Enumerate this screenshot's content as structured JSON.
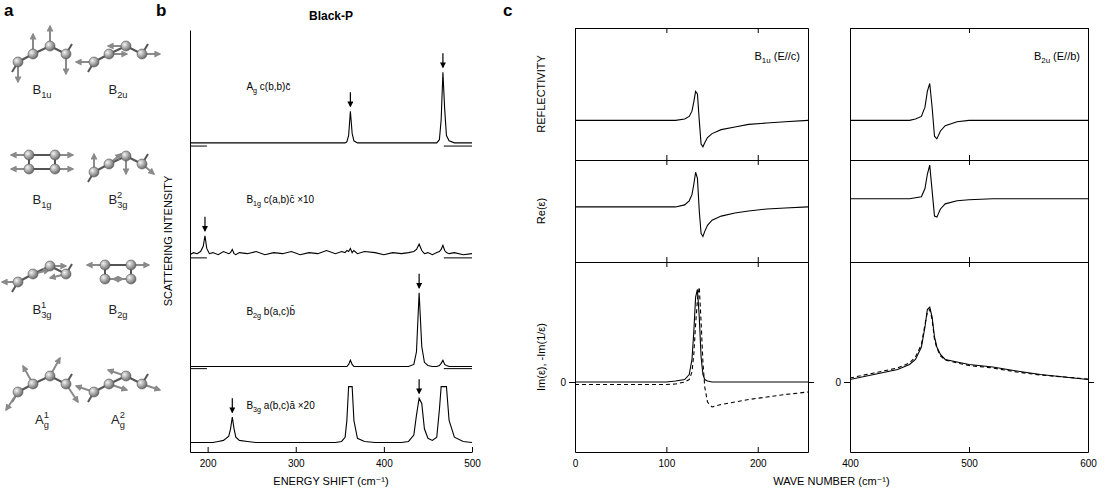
{
  "panel_letters": [
    "a",
    "b",
    "c"
  ],
  "diagram": {
    "modes": [
      "B1u",
      "B2u",
      "B1g",
      "B3g2",
      "B3g1",
      "B2g",
      "Ag1",
      "Ag2"
    ]
  },
  "chart_data": [
    {
      "type": "line",
      "title": "Black-P",
      "xlabel": "ENERGY SHIFT (cm⁻¹)",
      "ylabel": "SCATTERING INTENSITY",
      "x": [
        180,
        184,
        188,
        192,
        195,
        197,
        199,
        202,
        206,
        212,
        218,
        224,
        226,
        228,
        230,
        232,
        236,
        245,
        255,
        265,
        275,
        285,
        295,
        305,
        315,
        325,
        335,
        345,
        352,
        356,
        358,
        360,
        362,
        364,
        366,
        370,
        378,
        390,
        400,
        410,
        420,
        428,
        434,
        437,
        440,
        443,
        446,
        450,
        455,
        460,
        463,
        465,
        467,
        469,
        471,
        474,
        480,
        490,
        500
      ],
      "xlim": [
        180,
        500
      ],
      "xticks": [
        200,
        300,
        400,
        500
      ],
      "ylim": [
        0,
        4
      ],
      "tick_labels": "x",
      "series": [
        {
          "name": "Ag c(b,b)c̄",
          "color": "#000000",
          "baseline": 2.9,
          "arrows": [
            362,
            467
          ],
          "values": [
            2.93,
            2.93,
            2.93,
            2.93,
            2.93,
            2.93,
            2.93,
            2.93,
            2.93,
            2.93,
            2.93,
            2.93,
            2.93,
            2.93,
            2.93,
            2.93,
            2.93,
            2.93,
            2.93,
            2.93,
            2.93,
            2.93,
            2.93,
            2.93,
            2.93,
            2.93,
            2.93,
            2.93,
            2.93,
            2.93,
            2.94,
            3.0,
            3.23,
            3.02,
            2.95,
            2.93,
            2.93,
            2.93,
            2.93,
            2.93,
            2.93,
            2.93,
            2.93,
            2.93,
            2.93,
            2.93,
            2.93,
            2.93,
            2.93,
            2.93,
            2.96,
            3.15,
            3.6,
            3.25,
            3.0,
            2.95,
            2.93,
            2.93,
            2.93
          ]
        },
        {
          "name": "B1g c(a,b)c̄ ×10",
          "color": "#000000",
          "baseline": 1.84,
          "arrows": [
            197
          ],
          "values": [
            1.87,
            1.89,
            1.88,
            1.9,
            1.95,
            2.05,
            1.93,
            1.88,
            1.89,
            1.87,
            1.9,
            1.88,
            1.89,
            1.92,
            1.88,
            1.87,
            1.89,
            1.88,
            1.9,
            1.87,
            1.89,
            1.88,
            1.9,
            1.87,
            1.89,
            1.88,
            1.91,
            1.88,
            1.9,
            1.89,
            1.91,
            1.9,
            1.93,
            1.89,
            1.91,
            1.88,
            1.9,
            1.89,
            1.87,
            1.89,
            1.88,
            1.89,
            1.9,
            1.92,
            1.97,
            1.91,
            1.88,
            1.89,
            1.87,
            1.89,
            1.9,
            1.92,
            1.96,
            1.91,
            1.89,
            1.88,
            1.89,
            1.87,
            1.88
          ]
        },
        {
          "name": "B2g b(a,c)b̄",
          "color": "#000000",
          "baseline": 0.79,
          "arrows": [
            440
          ],
          "values": [
            0.81,
            0.81,
            0.81,
            0.81,
            0.81,
            0.81,
            0.81,
            0.81,
            0.81,
            0.81,
            0.81,
            0.81,
            0.81,
            0.81,
            0.81,
            0.81,
            0.81,
            0.81,
            0.81,
            0.81,
            0.81,
            0.81,
            0.81,
            0.81,
            0.81,
            0.81,
            0.81,
            0.81,
            0.81,
            0.81,
            0.81,
            0.83,
            0.87,
            0.83,
            0.81,
            0.81,
            0.81,
            0.81,
            0.81,
            0.81,
            0.81,
            0.81,
            0.83,
            0.95,
            1.51,
            1.0,
            0.85,
            0.82,
            0.81,
            0.81,
            0.82,
            0.84,
            0.87,
            0.83,
            0.82,
            0.81,
            0.81,
            0.81,
            0.81
          ]
        },
        {
          "name": "B3g a(b,c)ā ×20",
          "color": "#000000",
          "arrows": [
            228,
            440
          ],
          "values": [
            0.09,
            0.09,
            0.09,
            0.09,
            0.09,
            0.09,
            0.09,
            0.09,
            0.09,
            0.1,
            0.11,
            0.15,
            0.22,
            0.33,
            0.22,
            0.14,
            0.11,
            0.1,
            0.09,
            0.09,
            0.09,
            0.09,
            0.09,
            0.09,
            0.09,
            0.09,
            0.09,
            0.09,
            0.1,
            0.14,
            0.3,
            0.62,
            0.62,
            0.62,
            0.3,
            0.13,
            0.1,
            0.09,
            0.09,
            0.09,
            0.09,
            0.1,
            0.16,
            0.35,
            0.51,
            0.46,
            0.22,
            0.13,
            0.11,
            0.14,
            0.4,
            0.62,
            0.62,
            0.62,
            0.62,
            0.3,
            0.14,
            0.1,
            0.09
          ]
        }
      ]
    },
    {
      "type": "line",
      "title": "B1u (E//c)",
      "ylabel": "REFLECTIVITY",
      "x": [
        0,
        20,
        40,
        60,
        80,
        100,
        110,
        120,
        125,
        128,
        130,
        132,
        134,
        136,
        138,
        140,
        142,
        145,
        150,
        160,
        175,
        190,
        210,
        230,
        255
      ],
      "xlim": [
        0,
        255
      ],
      "xticks": [
        0,
        100,
        200
      ],
      "ylim": [
        0,
        1
      ],
      "tick_labels": false,
      "series": [
        {
          "color": "#000000",
          "line_style": "solid",
          "values": [
            0.3,
            0.3,
            0.3,
            0.3,
            0.3,
            0.3,
            0.3,
            0.31,
            0.33,
            0.37,
            0.44,
            0.52,
            0.5,
            0.3,
            0.12,
            0.1,
            0.13,
            0.17,
            0.2,
            0.23,
            0.25,
            0.27,
            0.28,
            0.29,
            0.3
          ]
        }
      ]
    },
    {
      "type": "line",
      "ylabel": "Re(ε)",
      "x": [
        0,
        20,
        40,
        60,
        80,
        100,
        110,
        120,
        125,
        128,
        130,
        132,
        134,
        136,
        138,
        140,
        142,
        145,
        150,
        160,
        175,
        190,
        210,
        230,
        255
      ],
      "xlim": [
        0,
        255
      ],
      "xticks": [
        0,
        100,
        200
      ],
      "ylim": [
        0,
        1
      ],
      "tick_labels": false,
      "series": [
        {
          "color": "#000000",
          "line_style": "solid",
          "values": [
            0.54,
            0.54,
            0.54,
            0.54,
            0.54,
            0.54,
            0.54,
            0.56,
            0.6,
            0.66,
            0.76,
            0.88,
            0.82,
            0.5,
            0.28,
            0.25,
            0.3,
            0.36,
            0.41,
            0.45,
            0.48,
            0.5,
            0.52,
            0.53,
            0.54
          ]
        }
      ]
    },
    {
      "type": "line",
      "xlabel": "WAVE NUMBER (cm⁻¹)",
      "ylabel": "Im(ε), -Im(1/ε)",
      "x": [
        0,
        20,
        40,
        60,
        80,
        100,
        110,
        120,
        125,
        128,
        130,
        132,
        134,
        136,
        138,
        140,
        142,
        145,
        150,
        160,
        175,
        190,
        210,
        230,
        255
      ],
      "xlim": [
        0,
        255
      ],
      "xticks": [
        0,
        100,
        200
      ],
      "ylim": [
        -1.4,
        2.4
      ],
      "yticks": [
        0
      ],
      "series": [
        {
          "color": "#000000",
          "line_style": "solid",
          "values": [
            0,
            0,
            0,
            0,
            0,
            0,
            0.02,
            0.05,
            0.15,
            0.45,
            1.0,
            1.7,
            1.85,
            1.3,
            0.5,
            0.15,
            0.05,
            0.02,
            0,
            0,
            0,
            0,
            0,
            0,
            0
          ]
        },
        {
          "color": "#000000",
          "line_style": "dashed",
          "values": [
            -0.05,
            -0.05,
            -0.05,
            -0.05,
            -0.05,
            -0.05,
            -0.04,
            0.0,
            0.05,
            0.2,
            0.55,
            1.15,
            1.65,
            1.9,
            1.2,
            0.4,
            -0.1,
            -0.4,
            -0.5,
            -0.45,
            -0.4,
            -0.35,
            -0.3,
            -0.25,
            -0.2
          ]
        }
      ]
    },
    {
      "type": "line",
      "title": "B2u (E//b)",
      "x": [
        400,
        420,
        440,
        450,
        455,
        460,
        463,
        465,
        467,
        469,
        471,
        473,
        476,
        480,
        490,
        500,
        520,
        540,
        560,
        580,
        600
      ],
      "xlim": [
        400,
        600
      ],
      "xticks": [
        400,
        500,
        600
      ],
      "ylim": [
        0,
        1
      ],
      "tick_labels": false,
      "series": [
        {
          "color": "#000000",
          "line_style": "solid",
          "values": [
            0.3,
            0.3,
            0.3,
            0.3,
            0.31,
            0.33,
            0.4,
            0.52,
            0.58,
            0.4,
            0.18,
            0.16,
            0.22,
            0.26,
            0.29,
            0.3,
            0.3,
            0.3,
            0.3,
            0.3,
            0.3
          ]
        }
      ]
    },
    {
      "type": "line",
      "x": [
        400,
        420,
        440,
        450,
        455,
        460,
        463,
        465,
        467,
        469,
        471,
        473,
        476,
        480,
        490,
        500,
        520,
        540,
        560,
        580,
        600
      ],
      "xlim": [
        400,
        600
      ],
      "xticks": [
        400,
        500,
        600
      ],
      "ylim": [
        0,
        1
      ],
      "tick_labels": false,
      "series": [
        {
          "color": "#000000",
          "line_style": "solid",
          "values": [
            0.62,
            0.62,
            0.62,
            0.62,
            0.63,
            0.64,
            0.72,
            0.86,
            0.95,
            0.7,
            0.45,
            0.44,
            0.52,
            0.57,
            0.6,
            0.61,
            0.62,
            0.62,
            0.62,
            0.62,
            0.62
          ]
        }
      ]
    },
    {
      "type": "line",
      "x": [
        400,
        420,
        440,
        450,
        455,
        460,
        463,
        465,
        467,
        469,
        471,
        473,
        476,
        480,
        490,
        500,
        520,
        540,
        560,
        580,
        600
      ],
      "xlim": [
        400,
        600
      ],
      "xticks": [
        400,
        500,
        600
      ],
      "ylim": [
        -1.4,
        2.4
      ],
      "yticks": [
        0
      ],
      "series": [
        {
          "color": "#000000",
          "line_style": "solid",
          "values": [
            0.05,
            0.15,
            0.25,
            0.35,
            0.45,
            0.7,
            1.1,
            1.45,
            1.5,
            1.3,
            0.9,
            0.7,
            0.55,
            0.45,
            0.4,
            0.35,
            0.3,
            0.22,
            0.15,
            0.1,
            0.05
          ]
        },
        {
          "color": "#000000",
          "line_style": "dashed",
          "values": [
            0.08,
            0.18,
            0.28,
            0.38,
            0.5,
            0.75,
            1.15,
            1.4,
            1.45,
            1.25,
            0.85,
            0.68,
            0.52,
            0.44,
            0.38,
            0.33,
            0.28,
            0.2,
            0.14,
            0.1,
            0.06
          ]
        }
      ]
    }
  ]
}
